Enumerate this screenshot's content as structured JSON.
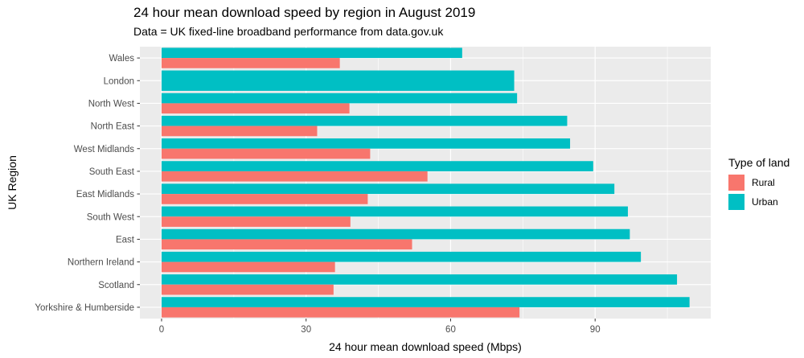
{
  "chart_data": {
    "type": "bar",
    "orientation": "horizontal",
    "title": "24 hour mean download speed by region in August 2019",
    "subtitle": "Data = UK fixed-line broadband performance from data.gov.uk",
    "xlabel": "24 hour mean download speed (Mbps)",
    "ylabel": "UK Region",
    "xlim": [
      -4.5,
      114
    ],
    "xticks": [
      0,
      30,
      60,
      90
    ],
    "categories": [
      "Wales",
      "London",
      "North West",
      "North East",
      "West Midlands",
      "South East",
      "East Midlands",
      "South West",
      "East",
      "Northern Ireland",
      "Scotland",
      "Yorkshire & Humberside"
    ],
    "series": [
      {
        "name": "Rural",
        "color": "#F8766D",
        "values": [
          37,
          null,
          39,
          32.3,
          43.3,
          55.2,
          42.8,
          39.2,
          52,
          36,
          35.7,
          74.3
        ]
      },
      {
        "name": "Urban",
        "color": "#00BFC4",
        "values": [
          62.4,
          73.2,
          73.8,
          84.2,
          84.8,
          89.6,
          94,
          96.8,
          97.2,
          99.5,
          107,
          109.6
        ]
      }
    ],
    "legend": {
      "title": "Type of land",
      "position": "right"
    },
    "grid": true,
    "panel_background": "#EBEBEB"
  }
}
